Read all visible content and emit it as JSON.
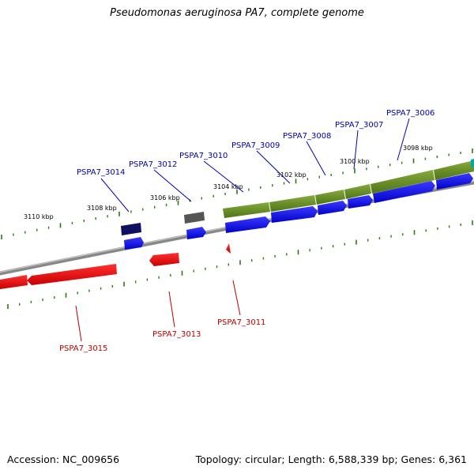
{
  "title": "Pseudomonas aeruginosa PA7, complete genome",
  "footer": {
    "accession": "Accession: NC_009656",
    "topology": "Topology: circular; Length: 6,588,339 bp; Genes: 6,361"
  },
  "colors": {
    "forward_gene": "#0000ee",
    "reverse_gene": "#ee0000",
    "forward_label": "#0000aa",
    "reverse_label": "#bb0000",
    "gc_track": "#5a8a1e",
    "tick": "#2a7a10",
    "backbone": "#808080",
    "dark_gene": "#101060",
    "grey_gene": "#555555",
    "cyan_block": "#00aaaa"
  },
  "kbp_scale": {
    "labels": [
      "3110 kbp",
      "3108 kbp",
      "3106 kbp",
      "3104 kbp",
      "3102 kbp",
      "3100 kbp",
      "3098 kbp"
    ]
  },
  "gene_labels": {
    "forward": [
      "PSPA7_3014",
      "PSPA7_3012",
      "PSPA7_3010",
      "PSPA7_3009",
      "PSPA7_3008",
      "PSPA7_3007",
      "PSPA7_3006"
    ],
    "reverse": [
      "PSPA7_3015",
      "PSPA7_3013",
      "PSPA7_3011"
    ]
  }
}
